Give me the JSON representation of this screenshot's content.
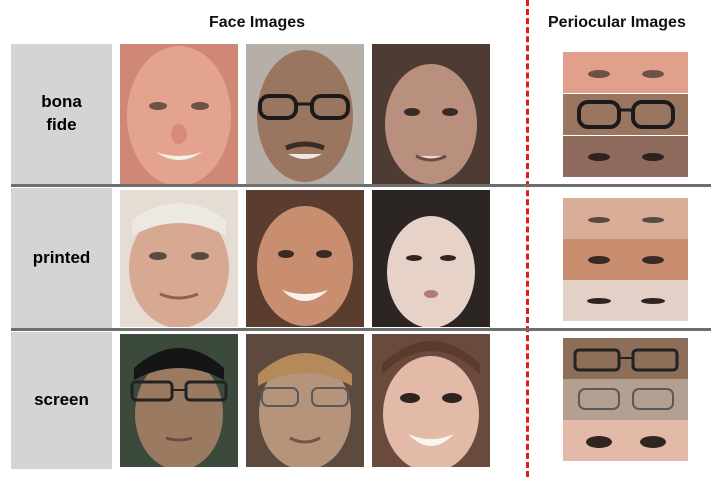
{
  "headers": {
    "face_images": "Face Images",
    "periocular_images": "Periocular Images"
  },
  "rows": [
    {
      "label_line1": "bona",
      "label_line2": "fide"
    },
    {
      "label_line1": "printed",
      "label_line2": ""
    },
    {
      "label_line1": "screen",
      "label_line2": ""
    }
  ],
  "colors": {
    "label_bg": "#d4d4d4",
    "separator": "#6e6e6e",
    "divider": "#e01b1b"
  }
}
